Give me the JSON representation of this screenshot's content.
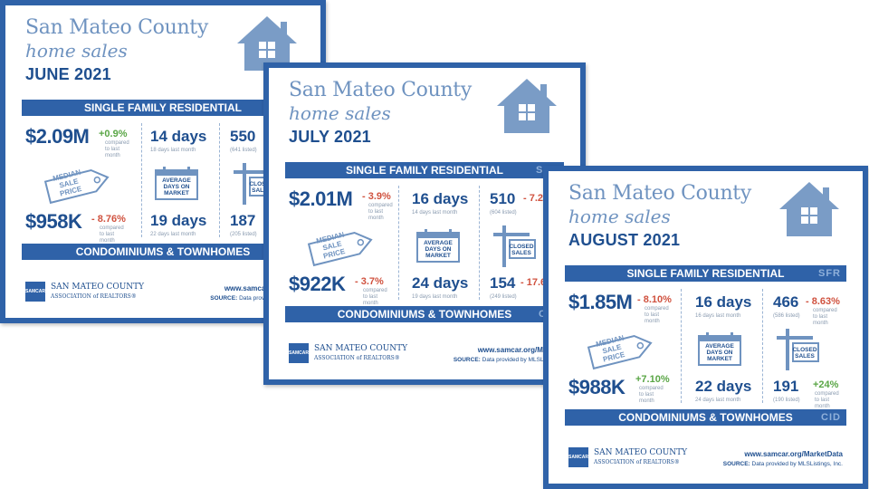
{
  "colors": {
    "primary": "#2f62a8",
    "dark_text": "#1f4f8f",
    "light_text": "#6f93c0",
    "negative": "#d0523f",
    "positive": "#5aa646"
  },
  "cards": [
    {
      "county": "San Mateo County",
      "subtitle": "home sales",
      "month": "JUNE 2021",
      "sfr_band": "SINGLE FAMILY RESIDENTIAL",
      "sfr_code": "",
      "cid_band": "CONDOMINIUMS & TOWNHOMES",
      "cid_code": "",
      "median_sfr": "$2.09M",
      "median_sfr_change": "+0.9%",
      "median_sfr_change_note": "compared to last month",
      "median_cid": "$958K",
      "median_cid_change": "- 8.76%",
      "median_cid_change_note": "compared to last month",
      "median_label": "MEDIAN\nSALE\nPRICE",
      "days_sfr": "14 days",
      "days_sfr_note": "18 days last month",
      "days_cid": "19 days",
      "days_cid_note": "22 days last month",
      "days_label": "AVERAGE\nDAYS ON\nMARKET",
      "closed_sfr": "550",
      "closed_sfr_note": "(641 listed)",
      "closed_cid": "187",
      "closed_cid_note": "(205 listed)",
      "closed_label": "CLOSED\nSALES",
      "url": "www.samcar.org/Mark",
      "source_label": "SOURCE:",
      "source_text": "Data provided by MLSL"
    },
    {
      "county": "San Mateo County",
      "subtitle": "home sales",
      "month": "JULY 2021",
      "sfr_band": "SINGLE FAMILY RESIDENTIAL",
      "sfr_code": "SFR",
      "cid_band": "CONDOMINIUMS & TOWNHOMES",
      "cid_code": "CID",
      "median_sfr": "$2.01M",
      "median_sfr_change": "- 3.9%",
      "median_sfr_change_note": "compared to last month",
      "median_cid": "$922K",
      "median_cid_change": "- 3.7%",
      "median_cid_change_note": "compared to last month",
      "median_label": "MEDIAN\nSALE\nPRICE",
      "days_sfr": "16 days",
      "days_sfr_note": "14 days last month",
      "days_cid": "24 days",
      "days_cid_note": "19 days last month",
      "days_label": "AVERAGE\nDAYS ON\nMARKET",
      "closed_sfr": "510",
      "closed_sfr_change": "- 7.2",
      "closed_sfr_note": "(604 listed)",
      "closed_cid": "154",
      "closed_cid_change": "- 17.6",
      "closed_cid_note": "(249 listed)",
      "closed_label": "CLOSED\nSALES",
      "url": "www.samcar.org/Market",
      "source_label": "SOURCE:",
      "source_text": "Data provided by MLSListings"
    },
    {
      "county": "San Mateo County",
      "subtitle": "home sales",
      "month": "AUGUST 2021",
      "sfr_band": "SINGLE FAMILY RESIDENTIAL",
      "sfr_code": "SFR",
      "cid_band": "CONDOMINIUMS & TOWNHOMES",
      "cid_code": "CID",
      "median_sfr": "$1.85M",
      "median_sfr_change": "- 8.10%",
      "median_sfr_change_note": "compared to last month",
      "median_cid": "$988K",
      "median_cid_change": "+7.10%",
      "median_cid_change_note": "compared to last month",
      "median_label": "MEDIAN\nSALE\nPRICE",
      "days_sfr": "16 days",
      "days_sfr_note": "16 days last month",
      "days_cid": "22 days",
      "days_cid_note": "24 days last month",
      "days_label": "AVERAGE\nDAYS ON\nMARKET",
      "closed_sfr": "466",
      "closed_sfr_change": "- 8.63%",
      "closed_sfr_change_note": "compared to last month",
      "closed_sfr_note": "(586 listed)",
      "closed_cid": "191",
      "closed_cid_change": "+24%",
      "closed_cid_change_note": "compared to last month",
      "closed_cid_note": "(190 listed)",
      "closed_label": "CLOSED\nSALES",
      "url": "www.samcar.org/MarketData",
      "source_label": "SOURCE:",
      "source_text": "Data provided by MLSListings, Inc."
    }
  ],
  "org": {
    "logo_text": "SAMCAR",
    "name_line1": "SAN MATEO COUNTY",
    "name_line2": "ASSOCIATION of REALTORS®"
  }
}
